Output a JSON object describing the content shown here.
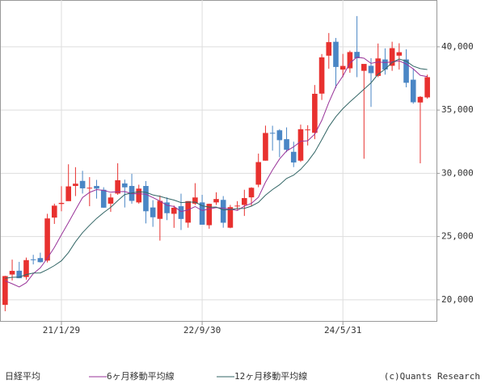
{
  "chart_data": {
    "type": "candlestick",
    "categories": [
      null,
      null,
      null,
      null,
      null,
      null,
      null,
      null,
      "21/1/29",
      null,
      null,
      null,
      null,
      null,
      null,
      null,
      null,
      null,
      null,
      null,
      null,
      null,
      null,
      null,
      null,
      null,
      null,
      null,
      "22/9/30",
      null,
      null,
      null,
      null,
      null,
      null,
      null,
      null,
      null,
      null,
      null,
      null,
      null,
      null,
      null,
      null,
      null,
      null,
      null,
      "24/5/31",
      null,
      null,
      null,
      null,
      null,
      null,
      null,
      null,
      null,
      null,
      null,
      null
    ],
    "candles": {
      "name": "日経平均",
      "up_color": "#e8312f",
      "down_color": "#4a86c5",
      "open": [
        19600,
        22000,
        22300,
        21800,
        23200,
        23300,
        23100,
        26500,
        27575,
        27800,
        29000,
        29400,
        28800,
        29000,
        28700,
        27600,
        28400,
        29200,
        29000,
        27700,
        29000,
        27300,
        26400,
        27700,
        26800,
        27400,
        26100,
        27600,
        27700,
        25900,
        27700,
        27900,
        25700,
        27400,
        27500,
        28100,
        29100,
        31000,
        33200,
        33400,
        32700,
        31700,
        31000,
        33400,
        33200,
        36300,
        39300,
        40400,
        38200,
        38300,
        39600,
        38100,
        38500,
        37700,
        39000,
        38500,
        39300,
        39000,
        37400,
        35600,
        36000
      ],
      "high": [
        21900,
        23178,
        23000,
        23340,
        23560,
        23725,
        26800,
        27600,
        28980,
        30714,
        30485,
        30200,
        29700,
        29480,
        28900,
        28400,
        30795,
        29500,
        29960,
        29100,
        29390,
        27880,
        28250,
        28100,
        27450,
        28390,
        27800,
        29220,
        28300,
        27600,
        28500,
        28200,
        27500,
        27800,
        28700,
        28900,
        31560,
        33770,
        33760,
        33490,
        33630,
        32500,
        33850,
        33800,
        36980,
        39430,
        41090,
        40700,
        39440,
        39700,
        42430,
        38500,
        39100,
        40260,
        39880,
        40400,
        40280,
        39800,
        38300,
        36100,
        37800
      ],
      "low": [
        19100,
        21530,
        21710,
        21600,
        22800,
        22950,
        22950,
        26000,
        27000,
        27900,
        28200,
        28400,
        27400,
        28000,
        27270,
        26950,
        28300,
        27300,
        27600,
        27600,
        26040,
        25770,
        24680,
        26300,
        25690,
        25520,
        25700,
        27500,
        25930,
        25620,
        27500,
        25700,
        25660,
        27100,
        26630,
        27400,
        28900,
        31000,
        31790,
        31270,
        31670,
        30490,
        30900,
        32200,
        32700,
        35800,
        38270,
        36730,
        37600,
        37950,
        37600,
        31150,
        35250,
        37600,
        37800,
        38100,
        38200,
        36800,
        35500,
        30790,
        35900
      ],
      "close": [
        21878,
        22288,
        21710,
        23140,
        23185,
        22977,
        26434,
        27444,
        27663,
        28966,
        29179,
        28813,
        28860,
        28792,
        27283,
        28089,
        29452,
        28892,
        27821,
        28791,
        27001,
        26526,
        27821,
        26847,
        27279,
        26393,
        27801,
        28091,
        25937,
        27587,
        27968,
        26094,
        27327,
        27446,
        28041,
        28856,
        30888,
        33189,
        33172,
        32619,
        31857,
        30858,
        33486,
        33464,
        36286,
        39166,
        40369,
        38405,
        38487,
        39583,
        39101,
        38647,
        37919,
        39081,
        38208,
        39894,
        39572,
        37155,
        35617,
        36045,
        37600
      ]
    },
    "series": [
      {
        "name": "6ヶ月移動平均線",
        "color": "#993399",
        "values": [
          21499,
          21271,
          21022,
          21355,
          22066,
          22530,
          23289,
          24148,
          25141,
          26112,
          27111,
          28083,
          28488,
          28712,
          28649,
          28503,
          28548,
          28561,
          28388,
          28388,
          28341,
          28081,
          27809,
          27468,
          27378,
          26978,
          27111,
          27372,
          27058,
          27181,
          27296,
          27246,
          27167,
          27060,
          27411,
          27622,
          28109,
          29291,
          30265,
          31128,
          31764,
          32097,
          32530,
          32576,
          33095,
          34186,
          35605,
          36863,
          37696,
          38716,
          39185,
          39099,
          38690,
          38803,
          38757,
          38808,
          38887,
          38638,
          38255,
          37749,
          37647
        ]
      },
      {
        "name": "12ヶ月移動平均線",
        "color": "#336666",
        "values": [
          21706,
          21783,
          21798,
          22001,
          22120,
          22124,
          22394,
          22710,
          23082,
          23734,
          24589,
          25307,
          25889,
          26430,
          26895,
          27308,
          27830,
          28322,
          28438,
          28550,
          28495,
          28292,
          28179,
          28015,
          27883,
          27683,
          27726,
          27727,
          27434,
          27325,
          27337,
          27112,
          27139,
          27216,
          27235,
          27402,
          27703,
          28269,
          28716,
          29094,
          29588,
          29860,
          30320,
          30934,
          31680,
          32657,
          33685,
          34480,
          35113,
          35646,
          36140,
          36643,
          37148,
          37833,
          38227,
          38762,
          39036,
          38869,
          38473,
          38276,
          38202
        ]
      }
    ],
    "ylim": [
      18330,
      43700
    ],
    "yticks": [
      {
        "value": 20000,
        "label": "20,000"
      },
      {
        "value": 25000,
        "label": "25,000"
      },
      {
        "value": 30000,
        "label": "30,000"
      },
      {
        "value": 35000,
        "label": "35,000"
      },
      {
        "value": 40000,
        "label": "40,000"
      }
    ],
    "grid": true,
    "copyright": "(c)Quants Research"
  }
}
